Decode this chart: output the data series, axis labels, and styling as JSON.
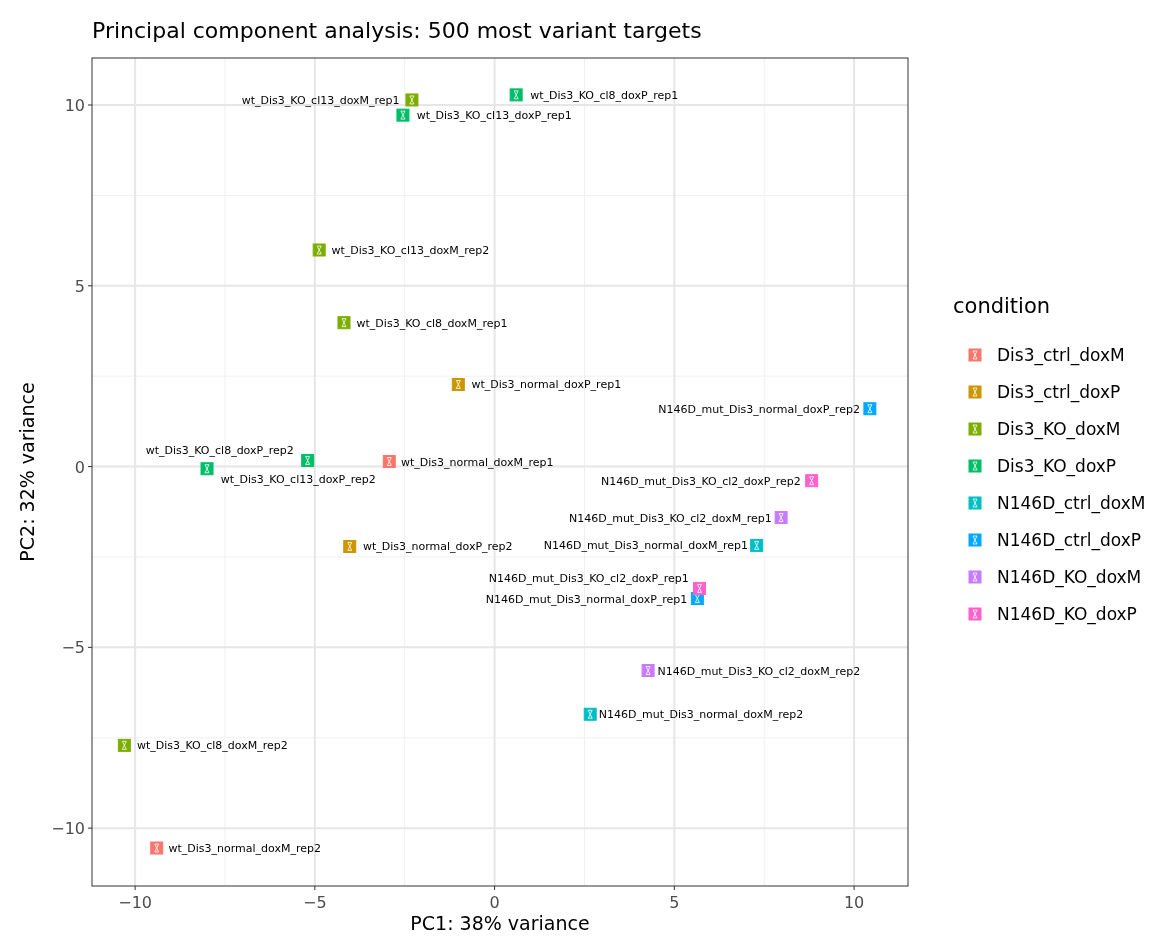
{
  "chart_data": {
    "type": "scatter",
    "title": "Principal component analysis: 500 most variant targets",
    "xlabel": "PC1: 38% variance",
    "ylabel": "PC2: 32% variance",
    "legend_title": "condition",
    "legend": "right",
    "grid": true,
    "marker": "square",
    "xlim": [
      -11.2,
      11.5
    ],
    "xticks": [
      -10,
      -5,
      0,
      5,
      10
    ],
    "ylim": [
      -11.6,
      11.3
    ],
    "yticks": [
      -10,
      -5,
      0,
      5,
      10
    ],
    "series": [
      {
        "name": "Dis3_ctrl_doxM",
        "color": "#f8766d",
        "x": [
          -2.93,
          -9.4
        ],
        "values": [
          0.14,
          -10.55
        ]
      },
      {
        "name": "Dis3_ctrl_doxP",
        "color": "#cd9600",
        "x": [
          -1.01,
          -4.03
        ],
        "values": [
          2.27,
          -2.21
        ]
      },
      {
        "name": "Dis3_KO_doxM",
        "color": "#7cae00",
        "x": [
          -2.3,
          -4.88,
          -4.19,
          -10.3
        ],
        "values": [
          10.14,
          5.99,
          3.98,
          -7.71
        ]
      },
      {
        "name": "Dis3_KO_doxP",
        "color": "#00be67",
        "x": [
          0.6,
          -2.55,
          -5.2,
          -8.0
        ],
        "values": [
          10.28,
          9.72,
          0.17,
          -0.06
        ]
      },
      {
        "name": "N146D_ctrl_doxM",
        "color": "#00bfc4",
        "x": [
          7.29,
          2.66
        ],
        "values": [
          -2.18,
          -6.85
        ]
      },
      {
        "name": "N146D_ctrl_doxP",
        "color": "#00a9ff",
        "x": [
          10.44,
          5.64
        ],
        "values": [
          1.6,
          -3.65
        ]
      },
      {
        "name": "N146D_KO_doxM",
        "color": "#c77cff",
        "x": [
          7.97,
          4.27
        ],
        "values": [
          -1.41,
          -5.64
        ]
      },
      {
        "name": "N146D_KO_doxP",
        "color": "#ff61cc",
        "x": [
          8.82,
          5.7
        ],
        "values": [
          -0.39,
          -3.37
        ]
      }
    ],
    "annotations": [
      {
        "text": "wt_Dis3_normal_doxM_rep1",
        "x": -2.93,
        "y": 0.14
      },
      {
        "text": "wt_Dis3_normal_doxM_rep2",
        "x": -9.4,
        "y": -10.55
      },
      {
        "text": "wt_Dis3_normal_doxP_rep1",
        "x": -1.01,
        "y": 2.27
      },
      {
        "text": "wt_Dis3_normal_doxP_rep2",
        "x": -4.03,
        "y": -2.21
      },
      {
        "text": "wt_Dis3_KO_cl13_doxM_rep1",
        "x": -2.3,
        "y": 10.14
      },
      {
        "text": "wt_Dis3_KO_cl13_doxM_rep2",
        "x": -4.88,
        "y": 5.99
      },
      {
        "text": "wt_Dis3_KO_cl8_doxM_rep1",
        "x": -4.19,
        "y": 3.98
      },
      {
        "text": "wt_Dis3_KO_cl8_doxM_rep2",
        "x": -10.3,
        "y": -7.71
      },
      {
        "text": "wt_Dis3_KO_cl8_doxP_rep1",
        "x": 0.6,
        "y": 10.28
      },
      {
        "text": "wt_Dis3_KO_cl13_doxP_rep1",
        "x": -2.55,
        "y": 9.72
      },
      {
        "text": "wt_Dis3_KO_cl8_doxP_rep2",
        "x": -5.2,
        "y": 0.17
      },
      {
        "text": "wt_Dis3_KO_cl13_doxP_rep2",
        "x": -8.0,
        "y": -0.06
      },
      {
        "text": "N146D_mut_Dis3_normal_doxM_rep1",
        "x": 7.29,
        "y": -2.18
      },
      {
        "text": "N146D_mut_Dis3_normal_doxM_rep2",
        "x": 2.66,
        "y": -6.85
      },
      {
        "text": "N146D_mut_Dis3_normal_doxP_rep2",
        "x": 10.44,
        "y": 1.6
      },
      {
        "text": "N146D_mut_Dis3_normal_doxP_rep1",
        "x": 5.64,
        "y": -3.65
      },
      {
        "text": "N146D_mut_Dis3_KO_cl2_doxM_rep1",
        "x": 7.97,
        "y": -1.41
      },
      {
        "text": "N146D_mut_Dis3_KO_cl2_doxM_rep2",
        "x": 4.27,
        "y": -5.64
      },
      {
        "text": "N146D_mut_Dis3_KO_cl2_doxP_rep2",
        "x": 8.82,
        "y": -0.39
      },
      {
        "text": "N146D_mut_Dis3_KO_cl2_doxP_rep1",
        "x": 5.7,
        "y": -3.37
      }
    ]
  }
}
